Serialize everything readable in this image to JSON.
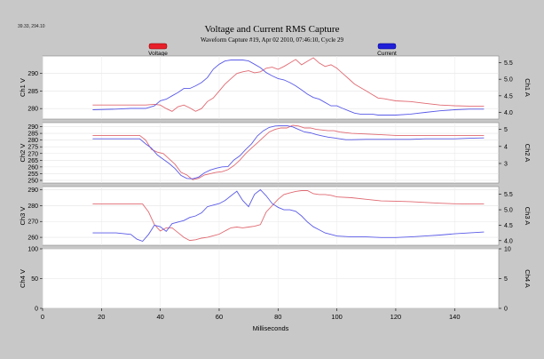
{
  "coord_readout": "39.33, 294.10",
  "title": "Voltage and Current RMS Capture",
  "subtitle": "Waveform Capture #19, Apr 02 2010, 07:46:10,  Cycle 29",
  "legend": {
    "voltage": {
      "label": "Voltage",
      "color": "#e8202a"
    },
    "current": {
      "label": "Current",
      "color": "#2020d8"
    }
  },
  "colors": {
    "voltage": "#e06a72",
    "current": "#5a5ae8",
    "background": "#c8c8c8",
    "panel": "#ffffff"
  },
  "chart_data": {
    "type": "line",
    "xlabel": "Milliseconds",
    "xlim": [
      0,
      155
    ],
    "xticks": [
      "0",
      "20",
      "40",
      "60",
      "80",
      "100",
      "120",
      "140"
    ],
    "grid": true,
    "legend_position": "top",
    "panels": [
      {
        "name": "ch1",
        "ylabel_left": "Ch1 V",
        "ylabel_right": "Ch1 A",
        "ylim_left": [
          277,
          295
        ],
        "ylim_right": [
          3.8,
          5.7
        ],
        "yticks_left": [
          "280",
          "285",
          "290"
        ],
        "yticks_right": [
          "4.0",
          "4.5",
          "5.0",
          "5.5"
        ],
        "series": [
          {
            "name": "Voltage",
            "axis": "left",
            "x": [
              17,
              25,
              30,
              35,
              38,
              40,
              42,
              44,
              46,
              48,
              50,
              52,
              54,
              56,
              58,
              60,
              62,
              64,
              66,
              68,
              70,
              72,
              74,
              76,
              78,
              80,
              82,
              84,
              86,
              88,
              90,
              92,
              94,
              96,
              98,
              100,
              102,
              104,
              106,
              108,
              110,
              112,
              114,
              116,
              118,
              120,
              125,
              130,
              135,
              140,
              145,
              150
            ],
            "y": [
              281,
              281,
              281,
              281,
              281.2,
              281,
              280,
              279.2,
              280.5,
              281,
              280.2,
              279.2,
              280,
              282,
              283,
              285,
              287,
              288.5,
              290,
              290.5,
              290.8,
              290.2,
              290.5,
              291.5,
              291.8,
              291.2,
              292,
              293,
              294,
              292.5,
              293.5,
              294.5,
              293,
              292,
              292.5,
              291.5,
              290,
              288.5,
              287,
              286,
              285,
              284,
              283,
              282.8,
              282.5,
              282.2,
              282,
              281.5,
              281,
              280.8,
              280.7,
              280.7
            ]
          },
          {
            "name": "Current",
            "axis": "right",
            "x": [
              17,
              25,
              30,
              35,
              38,
              40,
              42,
              44,
              46,
              48,
              50,
              52,
              54,
              56,
              58,
              60,
              62,
              64,
              66,
              68,
              70,
              72,
              74,
              76,
              78,
              80,
              82,
              84,
              86,
              88,
              90,
              92,
              94,
              96,
              98,
              100,
              102,
              104,
              106,
              108,
              110,
              112,
              114,
              116,
              118,
              120,
              125,
              130,
              135,
              140,
              145,
              150
            ],
            "y": [
              4.08,
              4.1,
              4.12,
              4.12,
              4.2,
              4.35,
              4.4,
              4.5,
              4.6,
              4.72,
              4.72,
              4.8,
              4.9,
              5.05,
              5.3,
              5.45,
              5.55,
              5.58,
              5.58,
              5.58,
              5.55,
              5.45,
              5.35,
              5.2,
              5.1,
              5.02,
              4.98,
              4.9,
              4.8,
              4.68,
              4.55,
              4.45,
              4.4,
              4.3,
              4.2,
              4.2,
              4.12,
              4.05,
              3.98,
              3.95,
              3.95,
              3.95,
              3.92,
              3.92,
              3.92,
              3.92,
              3.95,
              4.0,
              4.05,
              4.08,
              4.1,
              4.1
            ]
          }
        ]
      },
      {
        "name": "ch2",
        "ylabel_left": "Ch2 V",
        "ylabel_right": "Ch2 A",
        "ylim_left": [
          248,
          293
        ],
        "ylim_right": [
          1.85,
          5.4
        ],
        "yticks_left": [
          "250",
          "255",
          "260",
          "265",
          "270",
          "275",
          "280",
          "285",
          "290"
        ],
        "yticks_right": [
          "3",
          "4",
          "5"
        ],
        "series": [
          {
            "name": "Voltage",
            "axis": "left",
            "x": [
              17,
              25,
              30,
              33,
              35,
              37,
              39,
              41,
              43,
              45,
              47,
              49,
              51,
              53,
              55,
              57,
              59,
              61,
              63,
              65,
              67,
              69,
              71,
              73,
              75,
              77,
              79,
              81,
              83,
              85,
              87,
              89,
              91,
              93,
              95,
              97,
              99,
              101,
              103,
              105,
              110,
              115,
              120,
              125,
              130,
              135,
              140,
              145,
              150
            ],
            "y": [
              283.5,
              283.5,
              283.5,
              283.5,
              280,
              273,
              271,
              270,
              266,
              262,
              256,
              254,
              250.5,
              251.5,
              254,
              255,
              256,
              256.5,
              258,
              261,
              265,
              270,
              274,
              278,
              282,
              286,
              288,
              289,
              289,
              291,
              290.5,
              289,
              289,
              288,
              287.5,
              287,
              287,
              286,
              285.5,
              285,
              284.5,
              284,
              283.5,
              283.5,
              283.5,
              283.5,
              283.5,
              283.5,
              283.5
            ]
          },
          {
            "name": "Current",
            "axis": "right",
            "x": [
              17,
              25,
              30,
              33,
              35,
              37,
              39,
              41,
              43,
              45,
              47,
              49,
              51,
              53,
              55,
              57,
              59,
              61,
              63,
              65,
              67,
              69,
              71,
              73,
              75,
              77,
              79,
              81,
              83,
              85,
              87,
              89,
              91,
              93,
              95,
              97,
              99,
              101,
              103,
              105,
              110,
              115,
              120,
              125,
              130,
              135,
              140,
              145,
              150
            ],
            "y": [
              4.45,
              4.45,
              4.45,
              4.45,
              4.15,
              3.9,
              3.5,
              3.25,
              3.0,
              2.7,
              2.3,
              2.12,
              2.1,
              2.2,
              2.45,
              2.62,
              2.72,
              2.8,
              2.82,
              3.2,
              3.45,
              3.82,
              4.15,
              4.62,
              4.92,
              5.12,
              5.2,
              5.22,
              5.22,
              5.15,
              5.0,
              4.85,
              4.8,
              4.7,
              4.62,
              4.55,
              4.5,
              4.45,
              4.4,
              4.4,
              4.42,
              4.42,
              4.42,
              4.42,
              4.45,
              4.45,
              4.45,
              4.48,
              4.5
            ]
          }
        ]
      },
      {
        "name": "ch3",
        "ylabel_left": "Ch3 V",
        "ylabel_right": "Ch3 A",
        "ylim_left": [
          255,
          292
        ],
        "ylim_right": [
          3.85,
          5.75
        ],
        "yticks_left": [
          "260",
          "270",
          "280",
          "290"
        ],
        "yticks_right": [
          "4.0",
          "4.5",
          "5.0",
          "5.5"
        ],
        "series": [
          {
            "name": "Voltage",
            "axis": "left",
            "x": [
              17,
              25,
              30,
              34,
              36,
              38,
              40,
              42,
              44,
              46,
              48,
              50,
              52,
              54,
              56,
              58,
              60,
              62,
              64,
              66,
              68,
              70,
              72,
              74,
              76,
              78,
              80,
              82,
              84,
              86,
              88,
              90,
              92,
              94,
              96,
              98,
              100,
              105,
              110,
              115,
              120,
              125,
              130,
              135,
              140,
              145,
              150
            ],
            "y": [
              281,
              281,
              281,
              281,
              276,
              268,
              264,
              266,
              266,
              263,
              260,
              258,
              258.5,
              259.5,
              260,
              261,
              262,
              264,
              266,
              266.5,
              266,
              266.5,
              267,
              268,
              276,
              280,
              284,
              287,
              288,
              289,
              289.5,
              289.5,
              287.5,
              287,
              287,
              286.5,
              285.5,
              285,
              284,
              283,
              282.8,
              282.5,
              282,
              281.5,
              281.2,
              281,
              281
            ]
          },
          {
            "name": "Current",
            "axis": "right",
            "x": [
              17,
              25,
              30,
              32,
              34,
              36,
              38,
              40,
              42,
              44,
              46,
              48,
              50,
              52,
              54,
              56,
              58,
              60,
              62,
              64,
              66,
              68,
              70,
              72,
              74,
              76,
              78,
              80,
              82,
              84,
              86,
              88,
              90,
              92,
              94,
              96,
              98,
              100,
              105,
              110,
              115,
              120,
              125,
              130,
              135,
              140,
              145,
              150
            ],
            "y": [
              4.25,
              4.25,
              4.2,
              4.05,
              3.98,
              4.2,
              4.5,
              4.45,
              4.3,
              4.55,
              4.6,
              4.65,
              4.75,
              4.8,
              4.9,
              5.1,
              5.15,
              5.2,
              5.3,
              5.45,
              5.6,
              5.3,
              5.1,
              5.5,
              5.65,
              5.45,
              5.2,
              5.08,
              5.0,
              5.0,
              4.95,
              4.8,
              4.6,
              4.45,
              4.35,
              4.25,
              4.2,
              4.15,
              4.12,
              4.12,
              4.1,
              4.1,
              4.12,
              4.15,
              4.18,
              4.22,
              4.25,
              4.28
            ]
          }
        ]
      },
      {
        "name": "ch4",
        "ylabel_left": "Ch4 V",
        "ylabel_right": "Ch4 A",
        "ylim_left": [
          0,
          100
        ],
        "ylim_right": [
          0,
          10
        ],
        "yticks_left": [
          "0",
          "50",
          "100"
        ],
        "yticks_right": [
          "0",
          "5",
          "10"
        ],
        "series": []
      }
    ]
  }
}
